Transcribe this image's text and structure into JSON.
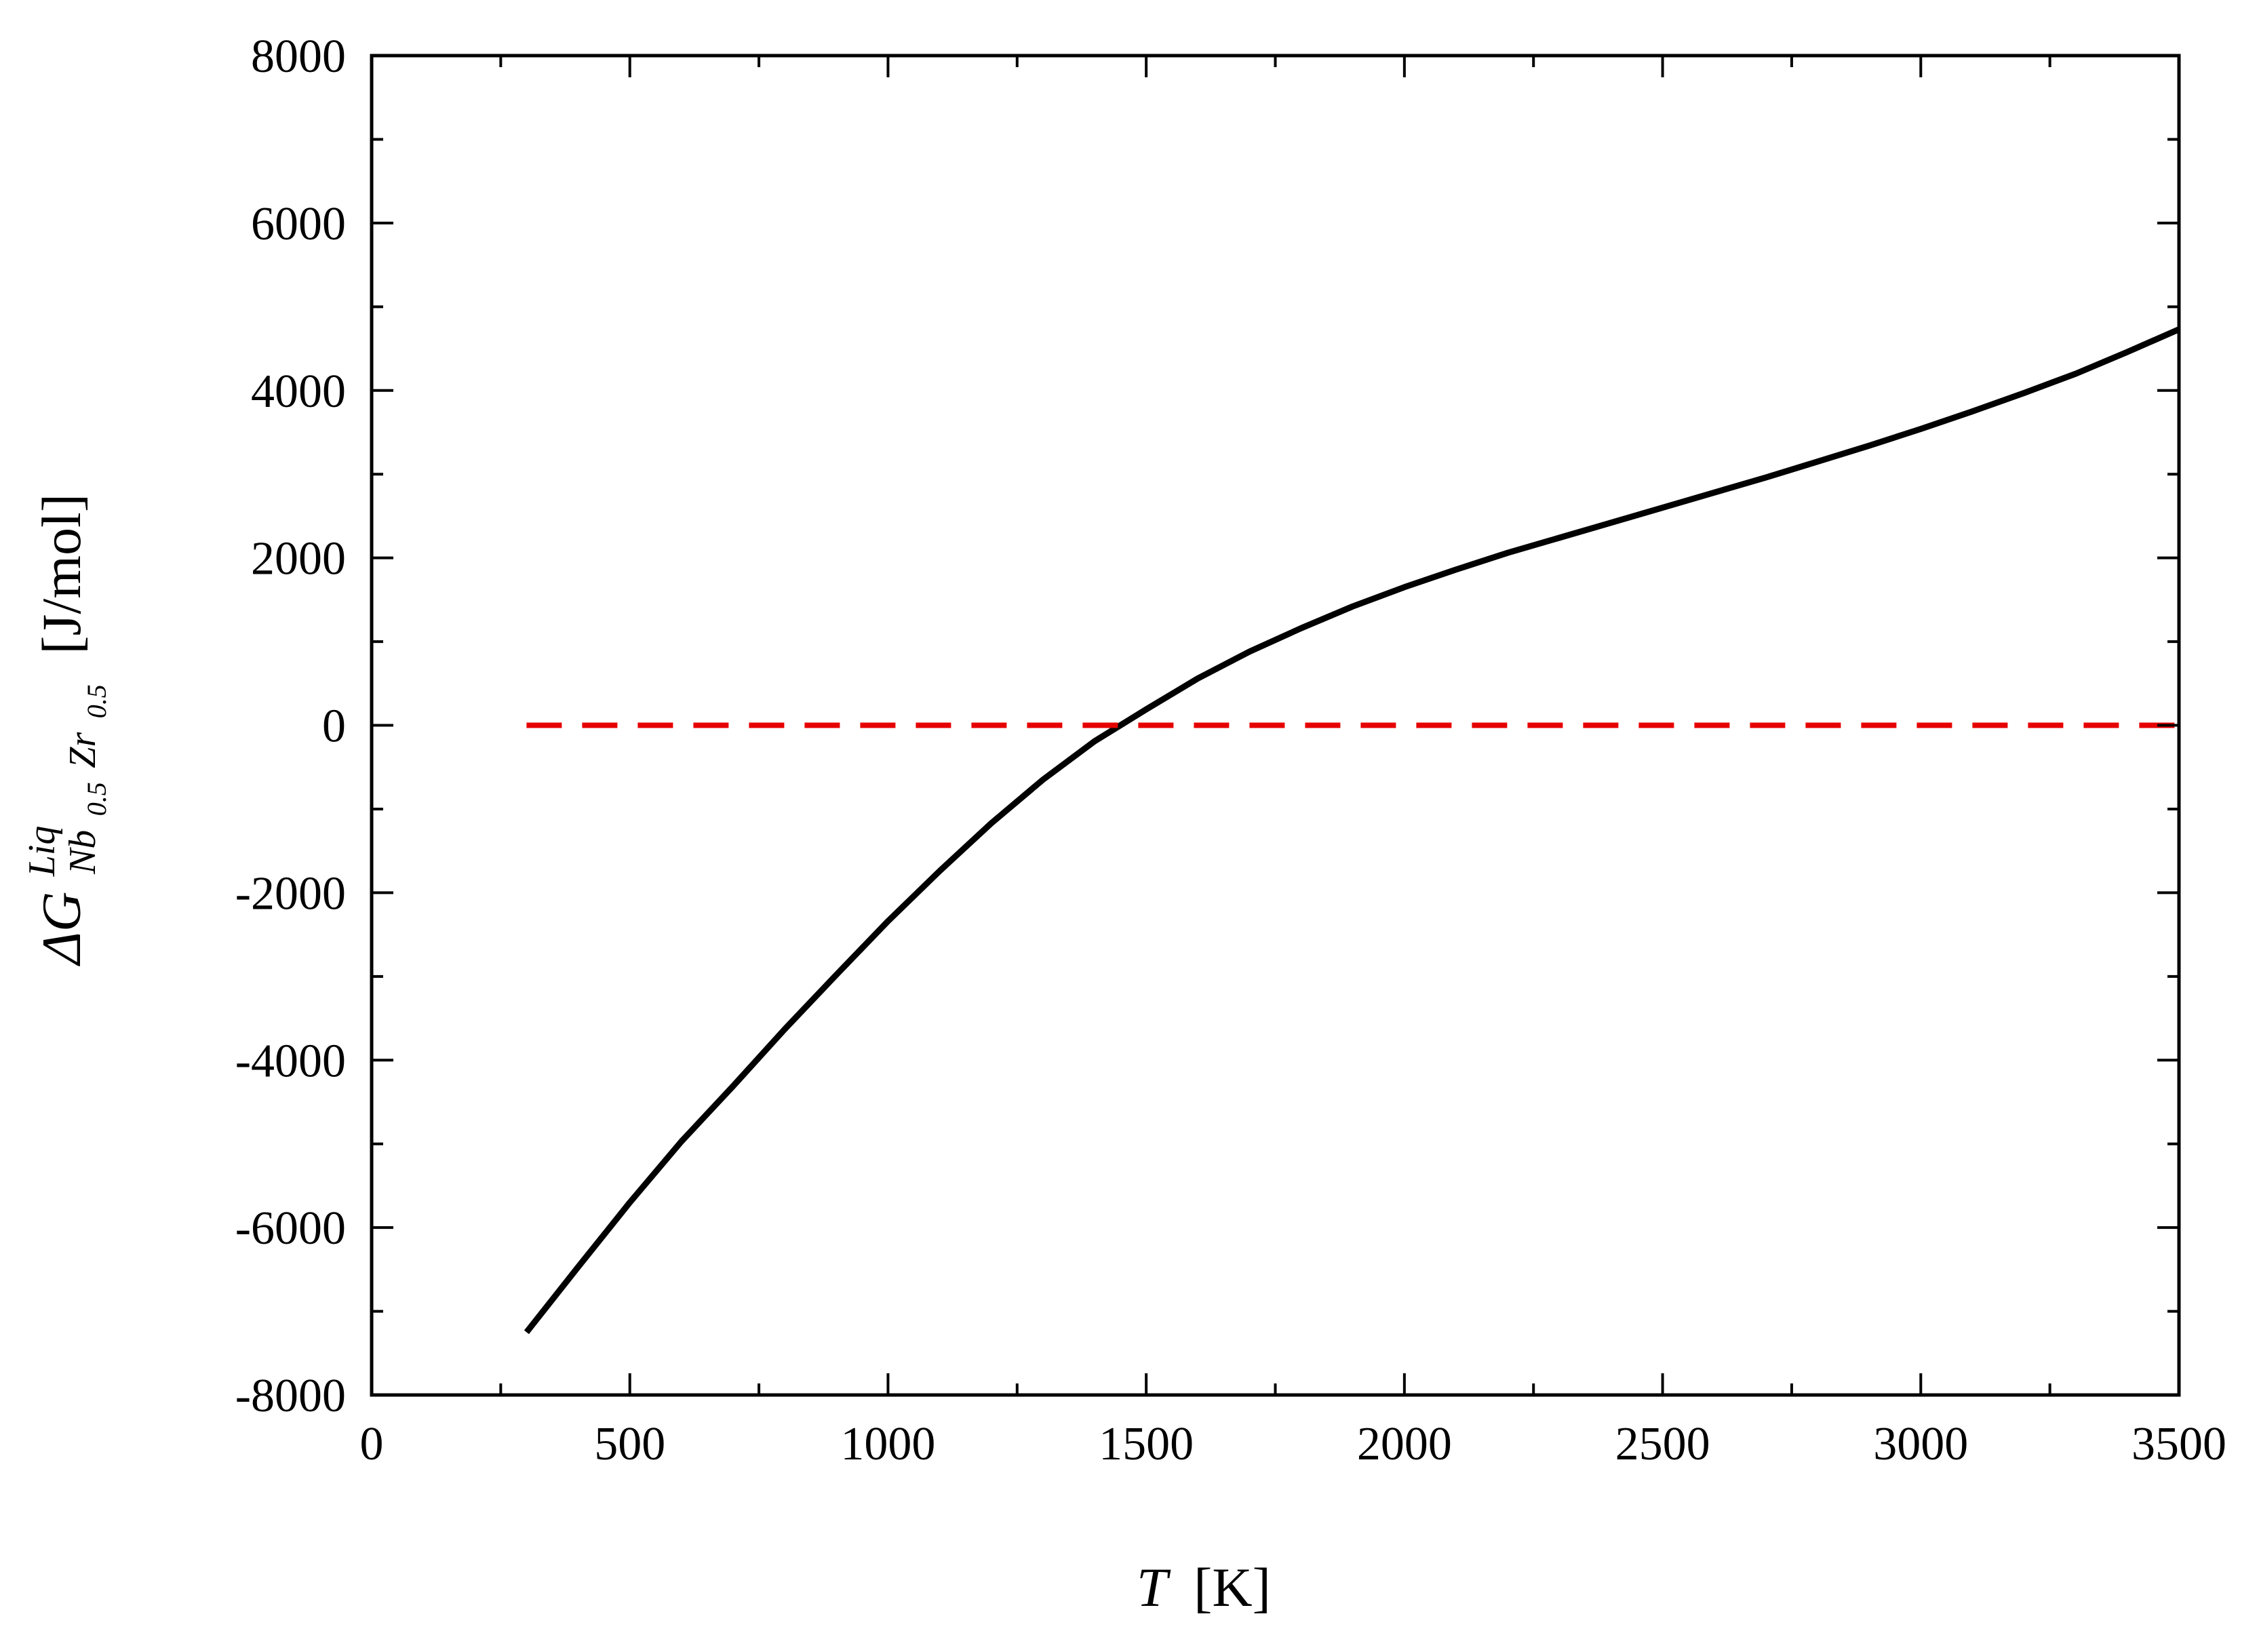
{
  "chart_data": {
    "type": "line",
    "title": "",
    "xlabel": {
      "symbol": "T",
      "unit": "[K]"
    },
    "ylabel": {
      "symbol": "ΔG",
      "superscript": "Liq",
      "subscript_parts": [
        {
          "text": "Nb",
          "sub": "0.5"
        },
        {
          "text": "Zr",
          "sub": "0.5"
        }
      ],
      "unit": "[J/mol]"
    },
    "xlim": [
      0,
      3500
    ],
    "ylim": [
      -8000,
      8000
    ],
    "xticks": [
      0,
      500,
      1000,
      1500,
      2000,
      2500,
      3000,
      3500
    ],
    "yticks": [
      -8000,
      -6000,
      -4000,
      -2000,
      0,
      2000,
      4000,
      6000,
      8000
    ],
    "xtick_labels": [
      "0",
      "500",
      "1000",
      "1500",
      "2000",
      "2500",
      "3000",
      "3500"
    ],
    "ytick_labels": [
      "-8000",
      "-6000",
      "-4000",
      "-2000",
      "0",
      "2000",
      "4000",
      "6000",
      "8000"
    ],
    "grid": false,
    "legend": "none",
    "series": [
      {
        "style": "solid",
        "color": "#000000",
        "x": [
          300,
          400,
          500,
          600,
          700,
          800,
          900,
          1000,
          1100,
          1200,
          1300,
          1400,
          1450,
          1500,
          1600,
          1700,
          1800,
          1900,
          2000,
          2100,
          2200,
          2300,
          2400,
          2500,
          2600,
          2700,
          2800,
          2900,
          3000,
          3100,
          3200,
          3300,
          3400,
          3500
        ],
        "y": [
          -7250,
          -6470,
          -5700,
          -4970,
          -4310,
          -3630,
          -2980,
          -2340,
          -1740,
          -1170,
          -650,
          -190,
          0,
          190,
          560,
          880,
          1160,
          1420,
          1650,
          1860,
          2060,
          2240,
          2420,
          2600,
          2780,
          2960,
          3150,
          3340,
          3540,
          3750,
          3970,
          4200,
          4460,
          4730
        ]
      },
      {
        "style": "dashed",
        "color": "#e60000",
        "x": [
          300,
          3500
        ],
        "y": [
          0,
          0
        ]
      }
    ]
  }
}
